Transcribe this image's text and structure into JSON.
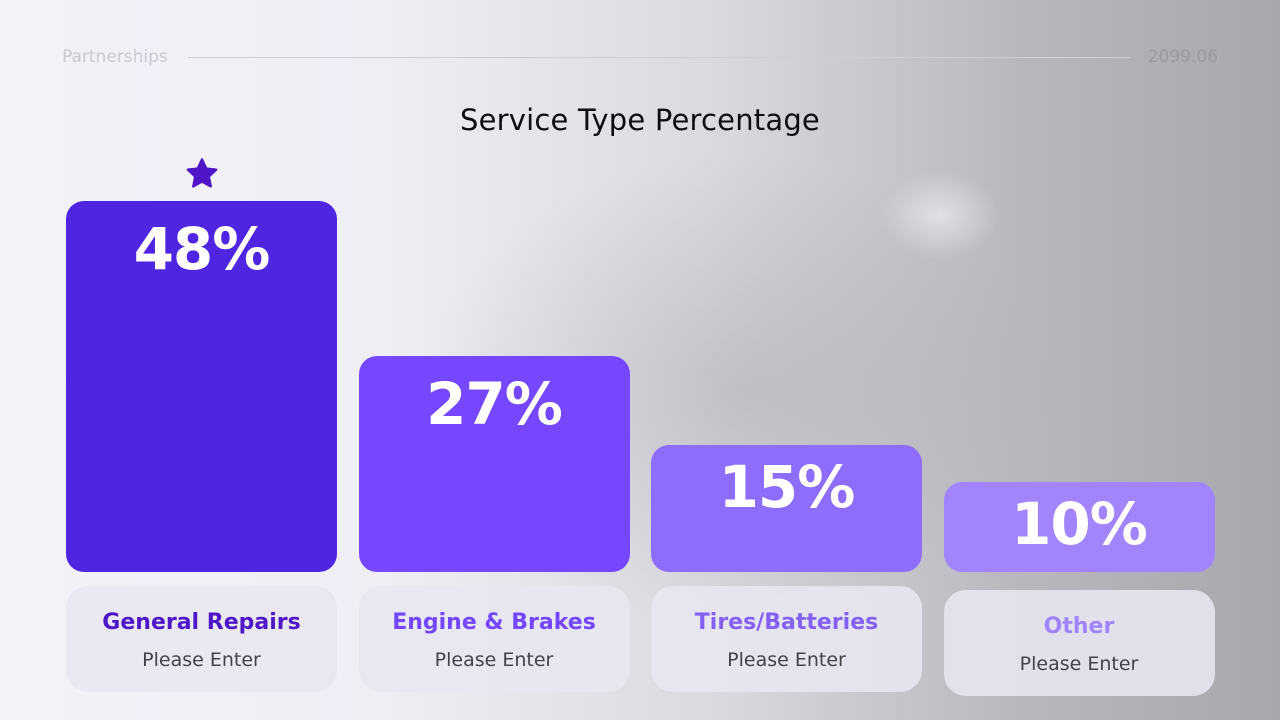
{
  "header": {
    "left": "Partnerships",
    "right": "2099.06"
  },
  "chart_data": {
    "type": "bar",
    "title": "Service Type Percentage",
    "categories": [
      "General Repairs",
      "Engine & Brakes",
      "Tires/Batteries",
      "Other"
    ],
    "values": [
      48,
      27,
      15,
      10
    ],
    "value_labels": [
      "48%",
      "27%",
      "15%",
      "10%"
    ],
    "subtitles": [
      "Please Enter",
      "Please Enter",
      "Please Enter",
      "Please Enter"
    ],
    "highlight_index": 0,
    "highlight_icon": "star-icon",
    "bar_colors": [
      "#4f25e2",
      "#7548ff",
      "#8e6dfc",
      "#a384ff"
    ],
    "label_colors": [
      "#4f16c7",
      "#7347ff",
      "#8461f4",
      "#9f85fb"
    ],
    "ylim": [
      0,
      48
    ]
  }
}
